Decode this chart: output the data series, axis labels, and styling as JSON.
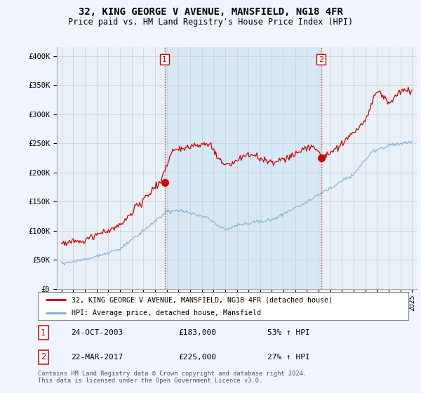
{
  "title": "32, KING GEORGE V AVENUE, MANSFIELD, NG18 4FR",
  "subtitle": "Price paid vs. HM Land Registry's House Price Index (HPI)",
  "legend_label_red": "32, KING GEORGE V AVENUE, MANSFIELD, NG18 4FR (detached house)",
  "legend_label_blue": "HPI: Average price, detached house, Mansfield",
  "sale1_date": "24-OCT-2003",
  "sale1_price": "£183,000",
  "sale1_hpi": "53% ↑ HPI",
  "sale1_year": 2003.82,
  "sale1_value": 183000,
  "sale2_date": "22-MAR-2017",
  "sale2_price": "£225,000",
  "sale2_hpi": "27% ↑ HPI",
  "sale2_year": 2017.22,
  "sale2_value": 225000,
  "footer": "Contains HM Land Registry data © Crown copyright and database right 2024.\nThis data is licensed under the Open Government Licence v3.0.",
  "ylim": [
    0,
    415000
  ],
  "yticks": [
    0,
    50000,
    100000,
    150000,
    200000,
    250000,
    300000,
    350000,
    400000
  ],
  "ytick_labels": [
    "£0",
    "£50K",
    "£100K",
    "£150K",
    "£200K",
    "£250K",
    "£300K",
    "£350K",
    "£400K"
  ],
  "red_color": "#cc0000",
  "blue_color": "#7aaed6",
  "shade_color": "#d6e8f5",
  "grid_color": "#cccccc",
  "background_color": "#f0f4ff",
  "plot_bg": "#e8f0f8"
}
